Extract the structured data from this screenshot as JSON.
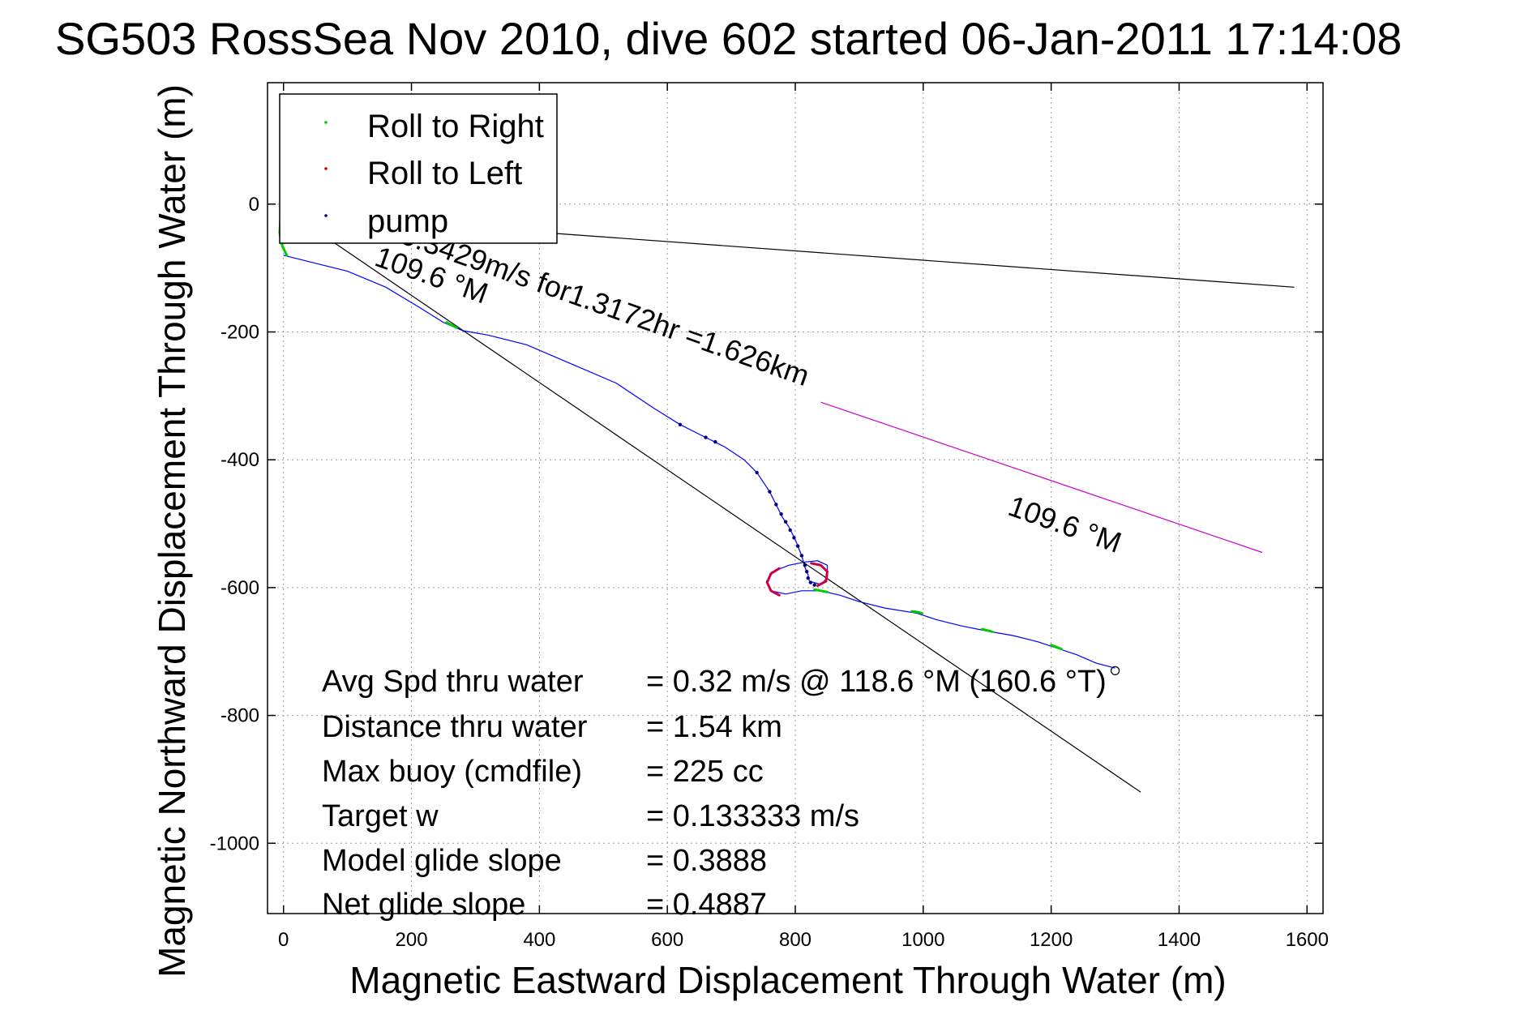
{
  "chart_data": {
    "type": "scatter",
    "title": "SG503 RossSea Nov 2010, dive 602 started 06-Jan-2011 17:14:08",
    "title_overprint": "SG5",
    "xlabel": "Magnetic Eastward Displacement Through Water (m)",
    "ylabel": "Magnetic Northward Displacement Through Water (m)",
    "xlim": [
      -25,
      1625
    ],
    "ylim": [
      -1110,
      190
    ],
    "xticks": [
      0,
      200,
      400,
      600,
      800,
      1000,
      1200,
      1400,
      1600
    ],
    "yticks": [
      0,
      -200,
      -400,
      -600,
      -800,
      -1000
    ],
    "grid": true,
    "legend_position": "top-left",
    "legend": [
      {
        "label": "Roll to Right",
        "color": "#00cc00"
      },
      {
        "label": "Roll to Left",
        "color": "#cc0000"
      },
      {
        "label": "pump",
        "color": "#000080"
      }
    ],
    "series": [
      {
        "kind": "track",
        "color": "#0000ff",
        "points": [
          [
            0,
            -80
          ],
          [
            40,
            -90
          ],
          [
            100,
            -105
          ],
          [
            160,
            -130
          ],
          [
            210,
            -160
          ],
          [
            250,
            -185
          ],
          [
            280,
            -198
          ],
          [
            320,
            -205
          ],
          [
            380,
            -220
          ],
          [
            450,
            -250
          ],
          [
            520,
            -280
          ],
          [
            580,
            -320
          ],
          [
            620,
            -345
          ],
          [
            660,
            -365
          ],
          [
            690,
            -380
          ],
          [
            720,
            -400
          ],
          [
            740,
            -420
          ],
          [
            760,
            -450
          ],
          [
            770,
            -470
          ],
          [
            780,
            -490
          ],
          [
            790,
            -505
          ],
          [
            800,
            -525
          ],
          [
            810,
            -550
          ],
          [
            815,
            -568
          ],
          [
            820,
            -580
          ],
          [
            822,
            -590
          ],
          [
            840,
            -595
          ],
          [
            850,
            -585
          ],
          [
            850,
            -565
          ],
          [
            835,
            -558
          ],
          [
            815,
            -560
          ],
          [
            790,
            -565
          ],
          [
            765,
            -575
          ],
          [
            755,
            -590
          ],
          [
            762,
            -605
          ],
          [
            785,
            -610
          ],
          [
            810,
            -605
          ],
          [
            840,
            -605
          ],
          [
            870,
            -612
          ],
          [
            900,
            -622
          ],
          [
            940,
            -632
          ],
          [
            990,
            -640
          ],
          [
            1020,
            -650
          ],
          [
            1060,
            -660
          ],
          [
            1100,
            -668
          ],
          [
            1140,
            -675
          ],
          [
            1180,
            -685
          ],
          [
            1210,
            -695
          ],
          [
            1240,
            -705
          ],
          [
            1270,
            -718
          ],
          [
            1300,
            -726
          ]
        ]
      },
      {
        "kind": "course_line",
        "color": "#000000",
        "points": [
          [
            70,
            -20
          ],
          [
            1580,
            -130
          ]
        ]
      },
      {
        "kind": "course_line",
        "color": "#000000",
        "points": [
          [
            20,
            -20
          ],
          [
            1340,
            -920
          ]
        ]
      },
      {
        "kind": "course_line",
        "color": "#cc00cc",
        "points": [
          [
            840,
            -310
          ],
          [
            1530,
            -545
          ]
        ]
      },
      {
        "kind": "roll_right_arcs",
        "color": "#00cc00",
        "segments": [
          [
            [
              0,
              -10
            ],
            [
              -5,
              -25
            ],
            [
              -6,
              -45
            ],
            [
              -2,
              -65
            ],
            [
              5,
              -80
            ]
          ],
          [
            [
              255,
              -185
            ],
            [
              262,
              -189
            ],
            [
              270,
              -193
            ]
          ],
          [
            [
              830,
              -603
            ],
            [
              840,
              -605
            ],
            [
              850,
              -607
            ]
          ],
          [
            [
              982,
              -637
            ],
            [
              990,
              -638
            ],
            [
              998,
              -640
            ]
          ],
          [
            [
              1092,
              -665
            ],
            [
              1100,
              -667
            ],
            [
              1108,
              -669
            ]
          ],
          [
            [
              1200,
              -690
            ],
            [
              1208,
              -693
            ],
            [
              1216,
              -696
            ]
          ]
        ]
      },
      {
        "kind": "roll_left_arc",
        "color": "#cc0044",
        "segments": [
          [
            [
              775,
              -570
            ],
            [
              762,
              -578
            ],
            [
              756,
              -592
            ],
            [
              762,
              -605
            ],
            [
              775,
              -612
            ]
          ],
          [
            [
              825,
              -562
            ],
            [
              840,
              -565
            ],
            [
              850,
              -575
            ],
            [
              848,
              -590
            ],
            [
              835,
              -597
            ]
          ]
        ]
      },
      {
        "kind": "pump_points",
        "color": "#000080",
        "points": [
          [
            620,
            -345
          ],
          [
            660,
            -365
          ],
          [
            675,
            -372
          ],
          [
            740,
            -420
          ],
          [
            760,
            -450
          ],
          [
            770,
            -470
          ],
          [
            778,
            -485
          ],
          [
            785,
            -497
          ],
          [
            792,
            -510
          ],
          [
            798,
            -522
          ],
          [
            804,
            -535
          ],
          [
            810,
            -550
          ],
          [
            815,
            -565
          ],
          [
            818,
            -575
          ],
          [
            820,
            -585
          ],
          [
            824,
            -592
          ],
          [
            830,
            -596
          ]
        ]
      },
      {
        "kind": "end_marker",
        "color": "#000000",
        "points": [
          [
            1300,
            -730
          ]
        ]
      }
    ],
    "annotations": [
      {
        "text": "0.3429m/s for1.3172hr =1.626km",
        "x": 180,
        "y": -60,
        "angle": 19.5
      },
      {
        "text": "109.6 °M",
        "x": 140,
        "y": -95,
        "angle": 19.5
      },
      {
        "text": "109.6 °M",
        "x": 1130,
        "y": -485,
        "angle": 19.5
      }
    ],
    "stats": [
      {
        "label": "Avg Spd thru water",
        "value": "=  0.32 m/s @ 118.6  °M (160.6 °T)"
      },
      {
        "label": "Distance thru water",
        "value": "=  1.54 km"
      },
      {
        "label": "Max buoy (cmdfile)",
        "value": "= 225 cc"
      },
      {
        "label": "Target w",
        "value": "= 0.133333 m/s"
      },
      {
        "label": "Model glide slope",
        "value": "= 0.3888"
      },
      {
        "label": "Net glide slope",
        "value": "= 0.4887"
      }
    ]
  }
}
